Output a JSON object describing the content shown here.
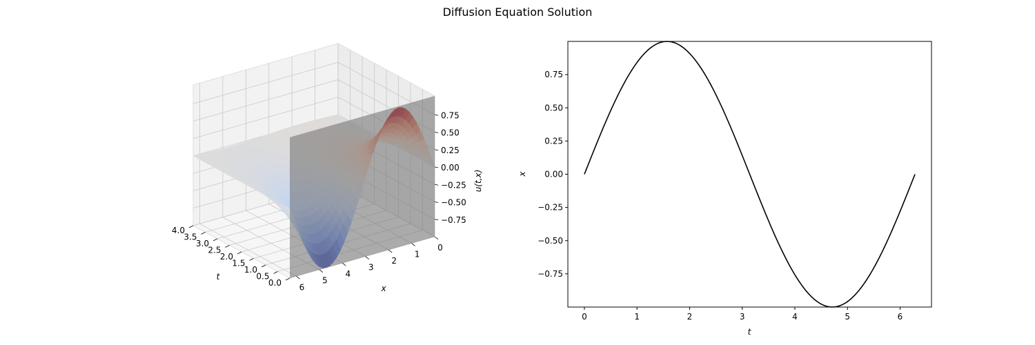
{
  "title": "Diffusion Equation Solution",
  "chart_data": [
    {
      "type": "surface3d",
      "xlabel": "t",
      "ylabel": "x",
      "zlabel": "u(t,x)",
      "t_ticks": [
        "0.0",
        "0.5",
        "1.0",
        "1.5",
        "2.0",
        "2.5",
        "3.0",
        "3.5",
        "4.0"
      ],
      "t_tick_values": [
        0,
        0.5,
        1,
        1.5,
        2,
        2.5,
        3,
        3.5,
        4
      ],
      "x_ticks": [
        "0",
        "1",
        "2",
        "3",
        "4",
        "5",
        "6"
      ],
      "x_tick_values": [
        0,
        1,
        2,
        3,
        4,
        5,
        6
      ],
      "z_ticks": [
        "0.75",
        "0.50",
        "0.25",
        "0.00",
        "−0.25",
        "−0.50",
        "−0.75"
      ],
      "z_tick_values": [
        0.75,
        0.5,
        0.25,
        0,
        -0.25,
        -0.5,
        -0.75
      ],
      "t_range": [
        0,
        4
      ],
      "x_range": [
        0,
        6.283
      ],
      "z_range": [
        -1,
        1
      ],
      "surface": "u(t,x) = exp(-t) * sin(x)",
      "colormap": "coolwarm",
      "slice_plane_t": 0,
      "grid": true
    },
    {
      "type": "line",
      "xlabel": "t",
      "ylabel": "x",
      "xlim": [
        -0.314,
        6.597
      ],
      "ylim": [
        -1,
        1
      ],
      "x_ticks": [
        "0",
        "1",
        "2",
        "3",
        "4",
        "5",
        "6"
      ],
      "x_tick_values": [
        0,
        1,
        2,
        3,
        4,
        5,
        6
      ],
      "y_ticks": [
        "0.75",
        "0.50",
        "0.25",
        "0.00",
        "−0.25",
        "−0.50",
        "−0.75"
      ],
      "y_tick_values": [
        0.75,
        0.5,
        0.25,
        0,
        -0.25,
        -0.5,
        -0.75
      ],
      "series": [
        {
          "color": "#000000",
          "x": [
            0,
            0.2,
            0.4,
            0.6,
            0.8,
            1.0,
            1.2,
            1.4,
            1.571,
            1.8,
            2.0,
            2.2,
            2.4,
            2.6,
            2.8,
            3.0,
            3.2,
            3.4,
            3.6,
            3.8,
            4.0,
            4.2,
            4.4,
            4.6,
            4.712,
            4.9,
            5.1,
            5.3,
            5.5,
            5.7,
            5.9,
            6.1,
            6.283
          ],
          "y": [
            0,
            0.199,
            0.389,
            0.565,
            0.717,
            0.841,
            0.932,
            0.985,
            1.0,
            0.974,
            0.909,
            0.808,
            0.675,
            0.516,
            0.335,
            0.141,
            -0.058,
            -0.256,
            -0.443,
            -0.612,
            -0.757,
            -0.872,
            -0.952,
            -0.994,
            -1.0,
            -0.982,
            -0.926,
            -0.832,
            -0.706,
            -0.551,
            -0.374,
            -0.183,
            0
          ]
        }
      ]
    }
  ]
}
